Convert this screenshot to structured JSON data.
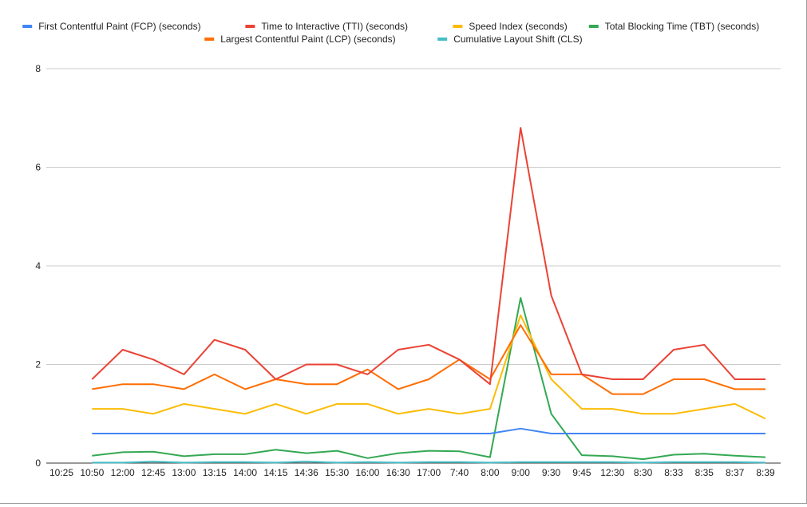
{
  "chart_data": {
    "type": "line",
    "title": "",
    "xlabel": "",
    "ylabel": "",
    "ylim": [
      0,
      8
    ],
    "yticks": [
      0,
      2,
      4,
      6,
      8
    ],
    "grid": true,
    "legend_position": "top",
    "categories": [
      "10:25",
      "10:50",
      "12:00",
      "12:45",
      "13:00",
      "13:15",
      "14:00",
      "14:15",
      "14:36",
      "15:30",
      "16:00",
      "16:30",
      "17:00",
      "7:40",
      "8:00",
      "9:00",
      "9:30",
      "9:45",
      "12:30",
      "8:30",
      "8:33",
      "8:35",
      "8:37",
      "8:39"
    ],
    "series": [
      {
        "name": "First Contentful Paint (FCP) (seconds)",
        "color": "#4285f4",
        "values": [
          null,
          0.6,
          0.6,
          0.6,
          0.6,
          0.6,
          0.6,
          0.6,
          0.6,
          0.6,
          0.6,
          0.6,
          0.6,
          0.6,
          0.6,
          0.7,
          0.6,
          0.6,
          0.6,
          0.6,
          0.6,
          0.6,
          0.6,
          0.6
        ]
      },
      {
        "name": "Time to Interactive (TTI) (seconds)",
        "color": "#ea4335",
        "values": [
          null,
          1.7,
          2.3,
          2.1,
          1.8,
          2.5,
          2.3,
          1.7,
          2.0,
          2.0,
          1.8,
          2.3,
          2.4,
          2.1,
          1.6,
          6.8,
          3.4,
          1.8,
          1.7,
          1.7,
          2.3,
          2.4,
          1.7,
          1.7
        ]
      },
      {
        "name": "Speed Index (seconds)",
        "color": "#fbbc04",
        "values": [
          null,
          1.1,
          1.1,
          1.0,
          1.2,
          1.1,
          1.0,
          1.2,
          1.0,
          1.2,
          1.2,
          1.0,
          1.1,
          1.0,
          1.1,
          3.0,
          1.7,
          1.1,
          1.1,
          1.0,
          1.0,
          1.1,
          1.2,
          0.9
        ]
      },
      {
        "name": "Total Blocking Time (TBT) (seconds)",
        "color": "#34a853",
        "values": [
          null,
          0.15,
          0.22,
          0.23,
          0.14,
          0.18,
          0.18,
          0.27,
          0.2,
          0.25,
          0.1,
          0.2,
          0.25,
          0.24,
          0.12,
          3.35,
          1.0,
          0.16,
          0.14,
          0.08,
          0.17,
          0.19,
          0.15,
          0.12
        ]
      },
      {
        "name": "Largest Contentful Paint (LCP) (seconds)",
        "color": "#ff6d01",
        "values": [
          null,
          1.5,
          1.6,
          1.6,
          1.5,
          1.8,
          1.5,
          1.7,
          1.6,
          1.6,
          1.9,
          1.5,
          1.7,
          2.1,
          1.7,
          2.8,
          1.8,
          1.8,
          1.4,
          1.4,
          1.7,
          1.7,
          1.5,
          1.5
        ]
      },
      {
        "name": "Cumulative Layout Shift (CLS)",
        "color": "#46bdc6",
        "values": [
          null,
          0.01,
          0.01,
          0.03,
          0.01,
          0.02,
          0.02,
          0.01,
          0.03,
          0.01,
          0.02,
          0.01,
          0.02,
          0.02,
          0.01,
          0.02,
          0.02,
          0.02,
          0.02,
          0.01,
          0.02,
          0.02,
          0.02,
          0.01
        ]
      }
    ]
  }
}
